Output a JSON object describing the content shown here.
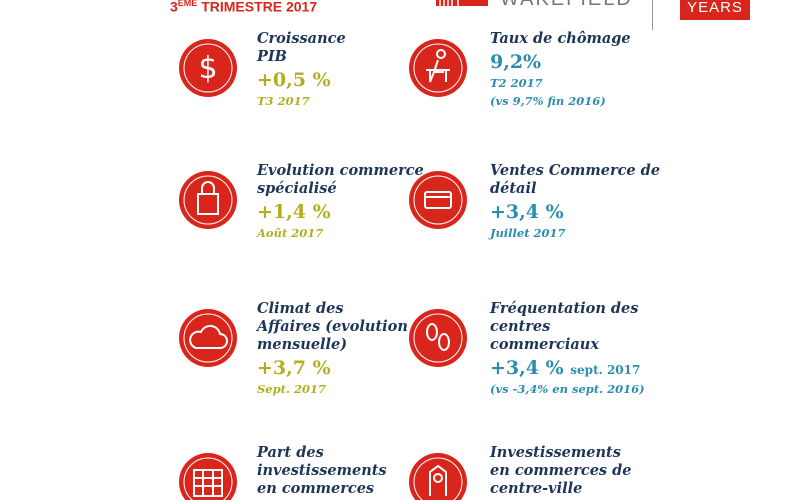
{
  "header": {
    "period_number": "3",
    "period_suffix": "ÈME",
    "period_rest": "TRIMESTRE 2017",
    "logo_text": "WAKEFIELD",
    "badge_text": "YEARS"
  },
  "items": [
    {
      "title_lines": [
        "Croissance",
        "PIB"
      ],
      "value": "+0,5 %",
      "notes": [
        "T3 2017"
      ]
    },
    {
      "title_lines": [
        "Taux de chômage"
      ],
      "value": "9,2%",
      "notes": [
        "T2 2017",
        "(vs 9,7% fin 2016)"
      ]
    },
    {
      "title_lines": [
        "Evolution commerce",
        "spécialisé"
      ],
      "value": "+1,4 %",
      "notes": [
        "Août 2017"
      ]
    },
    {
      "title_lines": [
        "Ventes Commerce de",
        "détail"
      ],
      "value": "+3,4 %",
      "notes": [
        "Juillet 2017"
      ]
    },
    {
      "title_lines": [
        "Climat des",
        "Affaires (evolution",
        "mensuelle)"
      ],
      "value": "+3,7 %",
      "notes": [
        "Sept. 2017"
      ]
    },
    {
      "title_lines": [
        "Fréquentation des",
        "centres",
        "commerciaux"
      ],
      "value": "+3,4 %",
      "value_note": "sept. 2017",
      "notes": [
        "(vs -3,4% en sept. 2016)"
      ]
    },
    {
      "title_lines": [
        "Part des",
        "investissements",
        "en commerces"
      ],
      "notes": []
    },
    {
      "title_lines": [
        "Investissements",
        "en commerces de",
        "centre-ville"
      ],
      "notes": []
    }
  ]
}
